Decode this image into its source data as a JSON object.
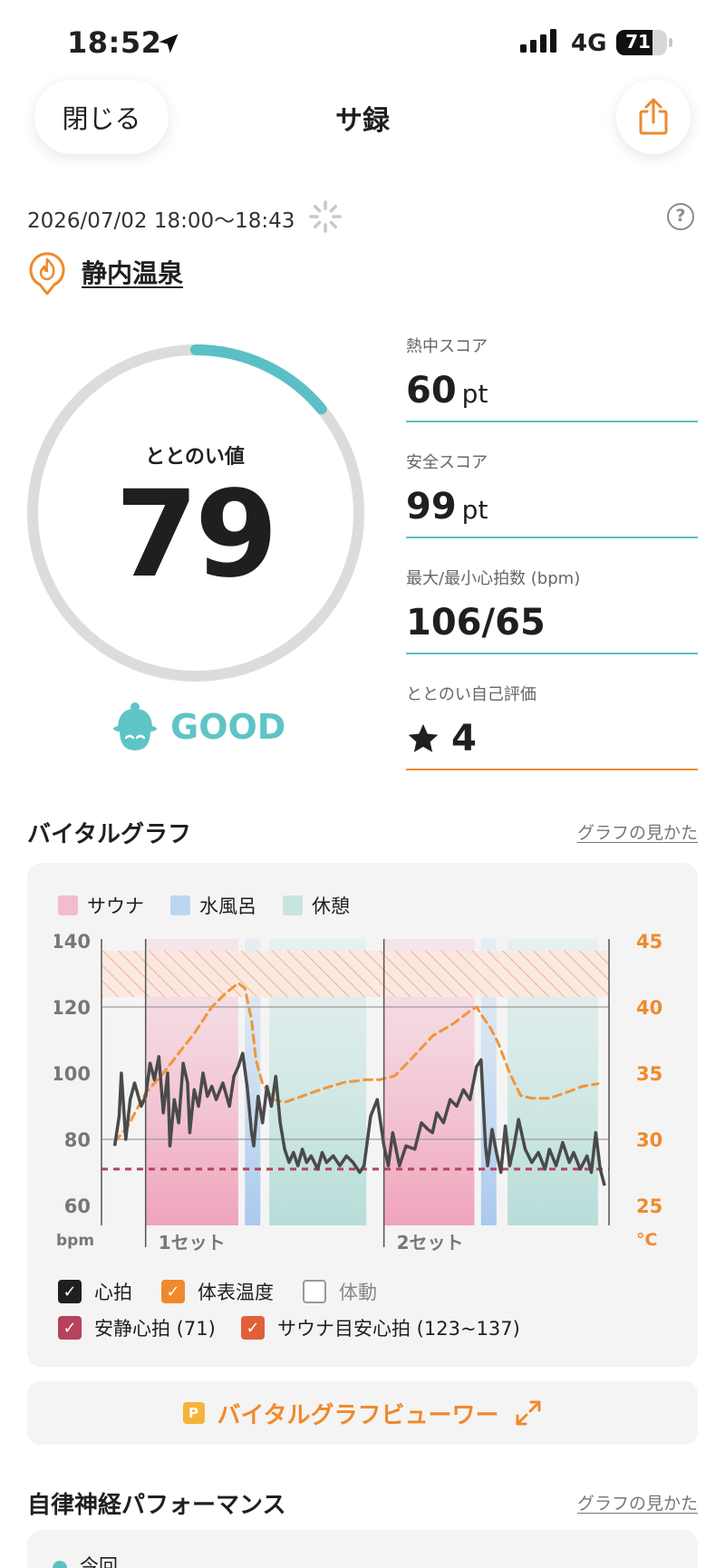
{
  "status_bar": {
    "time": "18:52",
    "network": "4G",
    "battery": "71",
    "battery_fraction": 0.71
  },
  "header": {
    "close_label": "閉じる",
    "title": "サ録"
  },
  "session": {
    "datetime": "2026/07/02 18:00～18:43",
    "facility": "静内温泉",
    "help_label": "?"
  },
  "totonoi": {
    "label": "ととのい値",
    "value": "79",
    "gauge_fraction": 0.14,
    "mood": "GOOD"
  },
  "scores": [
    {
      "label": "熱中スコア",
      "value": "60",
      "unit": "pt"
    },
    {
      "label": "安全スコア",
      "value": "99",
      "unit": "pt"
    },
    {
      "label": "最大/最小心拍数 (bpm)",
      "value": "106/65",
      "unit": ""
    },
    {
      "label": "ととのい自己評価",
      "value": "4",
      "unit": ""
    }
  ],
  "vital": {
    "title": "バイタルグラフ",
    "link": "グラフの見かた",
    "legend": [
      {
        "label": "サウナ",
        "color": "#f2bccd"
      },
      {
        "label": "水風呂",
        "color": "#bcd6f0"
      },
      {
        "label": "休憩",
        "color": "#c8e4e1"
      }
    ],
    "checks": {
      "heart": "心拍",
      "temp": "体表温度",
      "motion": "体動",
      "rest_hr": "安静心拍 (71)",
      "sauna_hr": "サウナ目安心拍 (123~137)"
    },
    "viewer": {
      "badge": "P",
      "label": "バイタルグラフビューワー"
    }
  },
  "chart_data": {
    "type": "line",
    "left_axis": {
      "unit": "bpm",
      "ticks": [
        "140",
        "120",
        "100",
        "80",
        "60"
      ],
      "range": [
        60,
        140
      ]
    },
    "right_axis": {
      "unit": "°C",
      "ticks": [
        "45",
        "40",
        "35",
        "30",
        "25"
      ],
      "range": [
        25,
        45
      ]
    },
    "sets": [
      "1セット",
      "2セット"
    ],
    "phases": [
      {
        "type": "sauna",
        "start": 2.0,
        "end": 6.2
      },
      {
        "type": "cold",
        "start": 6.5,
        "end": 7.2
      },
      {
        "type": "rest",
        "start": 7.6,
        "end": 12.0
      },
      {
        "type": "sauna",
        "start": 12.8,
        "end": 16.9
      },
      {
        "type": "cold",
        "start": 17.2,
        "end": 17.9
      },
      {
        "type": "rest",
        "start": 18.4,
        "end": 22.5
      }
    ],
    "rest_hr": 71,
    "sauna_target_hr": [
      123,
      137
    ],
    "x_range": [
      0,
      23.0
    ],
    "series": [
      {
        "name": "心拍",
        "color": "#4a4a4a",
        "points": [
          [
            0.6,
            78
          ],
          [
            0.8,
            87
          ],
          [
            0.9,
            100
          ],
          [
            1.1,
            80
          ],
          [
            1.3,
            92
          ],
          [
            1.5,
            97
          ],
          [
            1.8,
            90
          ],
          [
            2.0,
            93
          ],
          [
            2.2,
            103
          ],
          [
            2.4,
            98
          ],
          [
            2.6,
            105
          ],
          [
            2.8,
            88
          ],
          [
            3.0,
            100
          ],
          [
            3.1,
            78
          ],
          [
            3.3,
            92
          ],
          [
            3.5,
            85
          ],
          [
            3.7,
            103
          ],
          [
            3.9,
            97
          ],
          [
            4.0,
            82
          ],
          [
            4.2,
            95
          ],
          [
            4.4,
            90
          ],
          [
            4.6,
            100
          ],
          [
            4.8,
            93
          ],
          [
            5.0,
            96
          ],
          [
            5.2,
            92
          ],
          [
            5.5,
            97
          ],
          [
            5.8,
            90
          ],
          [
            6.0,
            99
          ],
          [
            6.2,
            102
          ],
          [
            6.4,
            106
          ],
          [
            6.6,
            96
          ],
          [
            6.8,
            82
          ],
          [
            6.9,
            78
          ],
          [
            7.1,
            93
          ],
          [
            7.3,
            85
          ],
          [
            7.5,
            96
          ],
          [
            7.7,
            90
          ],
          [
            7.9,
            99
          ],
          [
            8.1,
            85
          ],
          [
            8.3,
            77
          ],
          [
            8.5,
            73
          ],
          [
            8.7,
            76
          ],
          [
            8.9,
            72
          ],
          [
            9.1,
            77
          ],
          [
            9.3,
            73
          ],
          [
            9.5,
            75
          ],
          [
            9.8,
            71
          ],
          [
            10.0,
            76
          ],
          [
            10.2,
            73
          ],
          [
            10.5,
            75
          ],
          [
            10.8,
            72
          ],
          [
            11.1,
            75
          ],
          [
            11.4,
            73
          ],
          [
            11.7,
            70
          ],
          [
            11.9,
            72
          ],
          [
            12.2,
            87
          ],
          [
            12.5,
            92
          ],
          [
            12.8,
            78
          ],
          [
            13.0,
            72
          ],
          [
            13.2,
            82
          ],
          [
            13.5,
            72
          ],
          [
            13.8,
            78
          ],
          [
            14.2,
            77
          ],
          [
            14.5,
            85
          ],
          [
            14.8,
            83
          ],
          [
            15.0,
            82
          ],
          [
            15.2,
            88
          ],
          [
            15.5,
            85
          ],
          [
            15.8,
            92
          ],
          [
            16.1,
            90
          ],
          [
            16.4,
            95
          ],
          [
            16.7,
            92
          ],
          [
            17.0,
            102
          ],
          [
            17.2,
            104
          ],
          [
            17.4,
            78
          ],
          [
            17.5,
            72
          ],
          [
            17.7,
            83
          ],
          [
            17.9,
            76
          ],
          [
            18.1,
            70
          ],
          [
            18.3,
            84
          ],
          [
            18.5,
            72
          ],
          [
            18.7,
            78
          ],
          [
            18.9,
            86
          ],
          [
            19.2,
            77
          ],
          [
            19.5,
            73
          ],
          [
            19.8,
            76
          ],
          [
            20.1,
            71
          ],
          [
            20.3,
            77
          ],
          [
            20.6,
            72
          ],
          [
            20.9,
            79
          ],
          [
            21.2,
            73
          ],
          [
            21.4,
            76
          ],
          [
            21.7,
            71
          ],
          [
            22.0,
            75
          ],
          [
            22.2,
            70
          ],
          [
            22.4,
            82
          ],
          [
            22.6,
            71
          ],
          [
            22.8,
            66
          ]
        ]
      },
      {
        "name": "体表温度",
        "color": "#f0953a",
        "points": [
          [
            0.6,
            29.8
          ],
          [
            1.2,
            31
          ],
          [
            2.0,
            33.5
          ],
          [
            2.8,
            35
          ],
          [
            3.5,
            36.5
          ],
          [
            4.2,
            38
          ],
          [
            5.0,
            40
          ],
          [
            5.6,
            41
          ],
          [
            6.2,
            41.8
          ],
          [
            6.5,
            41.4
          ],
          [
            6.8,
            39
          ],
          [
            7.0,
            36
          ],
          [
            7.3,
            34.2
          ],
          [
            7.8,
            33
          ],
          [
            8.3,
            32.8
          ],
          [
            9.0,
            33.2
          ],
          [
            10.0,
            33.8
          ],
          [
            11.0,
            34.3
          ],
          [
            12.0,
            34.5
          ],
          [
            12.6,
            34.5
          ],
          [
            13.3,
            34.8
          ],
          [
            14.0,
            36
          ],
          [
            15.0,
            37.8
          ],
          [
            16.0,
            38.8
          ],
          [
            16.7,
            39.7
          ],
          [
            17.0,
            40
          ],
          [
            17.3,
            39.2
          ],
          [
            17.6,
            38.5
          ],
          [
            18.0,
            37.2
          ],
          [
            18.5,
            35
          ],
          [
            19.0,
            33.3
          ],
          [
            19.5,
            33.1
          ],
          [
            20.3,
            33.1
          ],
          [
            21.0,
            33.5
          ],
          [
            21.8,
            34.0
          ],
          [
            22.5,
            34.2
          ]
        ]
      }
    ]
  }
}
